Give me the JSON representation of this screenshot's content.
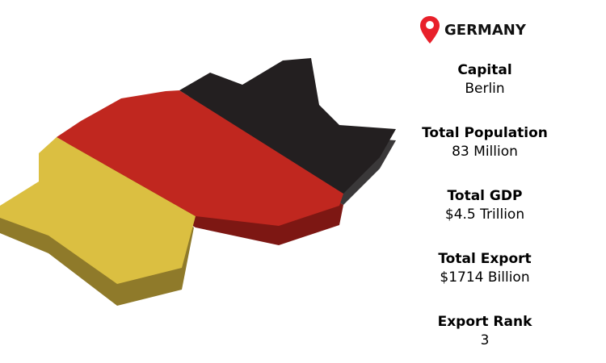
{
  "country": "GERMANY",
  "icon": "map-pin-icon",
  "colors": {
    "black": "#231f20",
    "red": "#c0271f",
    "yellow": "#dbbf41",
    "pin": "#e8202a"
  },
  "stats": [
    {
      "label": "Capital",
      "value": "Berlin"
    },
    {
      "label": "Total Population",
      "value": "83 Million"
    },
    {
      "label": "Total GDP",
      "value": "$4.5 Trillion"
    },
    {
      "label": "Total Export",
      "value": "$1714 Billion"
    },
    {
      "label": "Export Rank",
      "value": "3"
    }
  ]
}
